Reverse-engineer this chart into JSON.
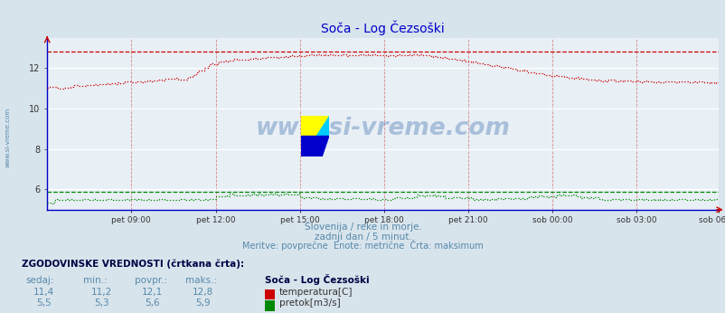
{
  "title": "Soča - Log Čezsoški",
  "subtitle1": "Slovenija / reke in morje.",
  "subtitle2": "zadnji dan / 5 minut.",
  "subtitle3": "Meritve: povprečne  Enote: metrične  Črta: maksimum",
  "watermark": "www.si-vreme.com",
  "xlabel_ticks": [
    "pet 09:00",
    "pet 12:00",
    "pet 15:00",
    "pet 18:00",
    "pet 21:00",
    "sob 00:00",
    "sob 03:00",
    "sob 06:00"
  ],
  "yticks": [
    6,
    8,
    10,
    12
  ],
  "ylim": [
    5.0,
    13.5
  ],
  "xlim": [
    0,
    287
  ],
  "tick_positions": [
    36,
    72,
    108,
    144,
    180,
    216,
    252,
    287
  ],
  "bg_color": "#d8e4ec",
  "plot_bg_color": "#e8eff5",
  "grid_color_h": "#ffffff",
  "grid_color_v": "#cc6666",
  "temp_color": "#cc0000",
  "flow_color": "#008800",
  "title_color": "#0000cc",
  "footer_text_color": "#5588aa",
  "sidebar_text_color": "#5588aa",
  "legend_label1": "ZGODOVINSKE VREDNOSTI (črtkana črta):",
  "legend_col_headers": [
    "sedaj:",
    "min.:",
    "povpr.:",
    "maks.:"
  ],
  "legend_station": "Soča - Log Čezsoški",
  "legend_temp_label": "temperatura[C]",
  "legend_flow_label": "pretok[m3/s]",
  "temp_sedaj": "11,4",
  "temp_min": "11,2",
  "temp_povpr": "12,1",
  "temp_maks": "12,8",
  "flow_sedaj": "5,5",
  "flow_min": "5,3",
  "flow_povpr": "5,6",
  "flow_maks": "5,9",
  "temp_max_line": 12.8,
  "flow_max_line": 5.9,
  "n_points": 288
}
